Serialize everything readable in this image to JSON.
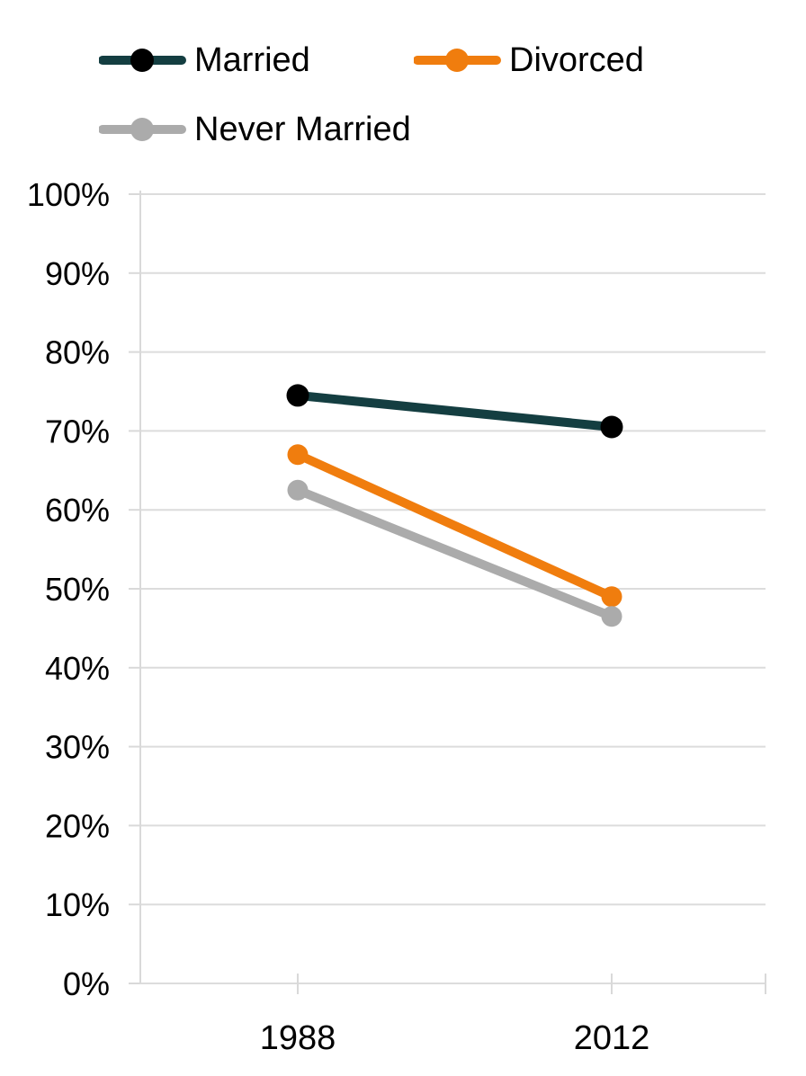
{
  "chart_data": {
    "type": "line",
    "categories": [
      "1988",
      "2012"
    ],
    "series": [
      {
        "name": "Married",
        "values": [
          74.5,
          70.5
        ],
        "line_color": "#143e41",
        "marker_color": "#000000"
      },
      {
        "name": "Divorced",
        "values": [
          67.0,
          49.0
        ],
        "line_color": "#f07d0e",
        "marker_color": "#f07d0e"
      },
      {
        "name": "Never Married",
        "values": [
          62.5,
          46.5
        ],
        "line_color": "#ababab",
        "marker_color": "#ababab"
      }
    ],
    "ylim": [
      0,
      100
    ],
    "ytick_step": 10,
    "ytick_labels": [
      "0%",
      "10%",
      "20%",
      "30%",
      "40%",
      "50%",
      "60%",
      "70%",
      "80%",
      "90%",
      "100%"
    ],
    "grid": true,
    "legend_position": "top-left",
    "colors": {
      "grid": "#dcdcdc",
      "axis": "#d9d9d9",
      "text": "#000000",
      "background": "#ffffff"
    }
  }
}
